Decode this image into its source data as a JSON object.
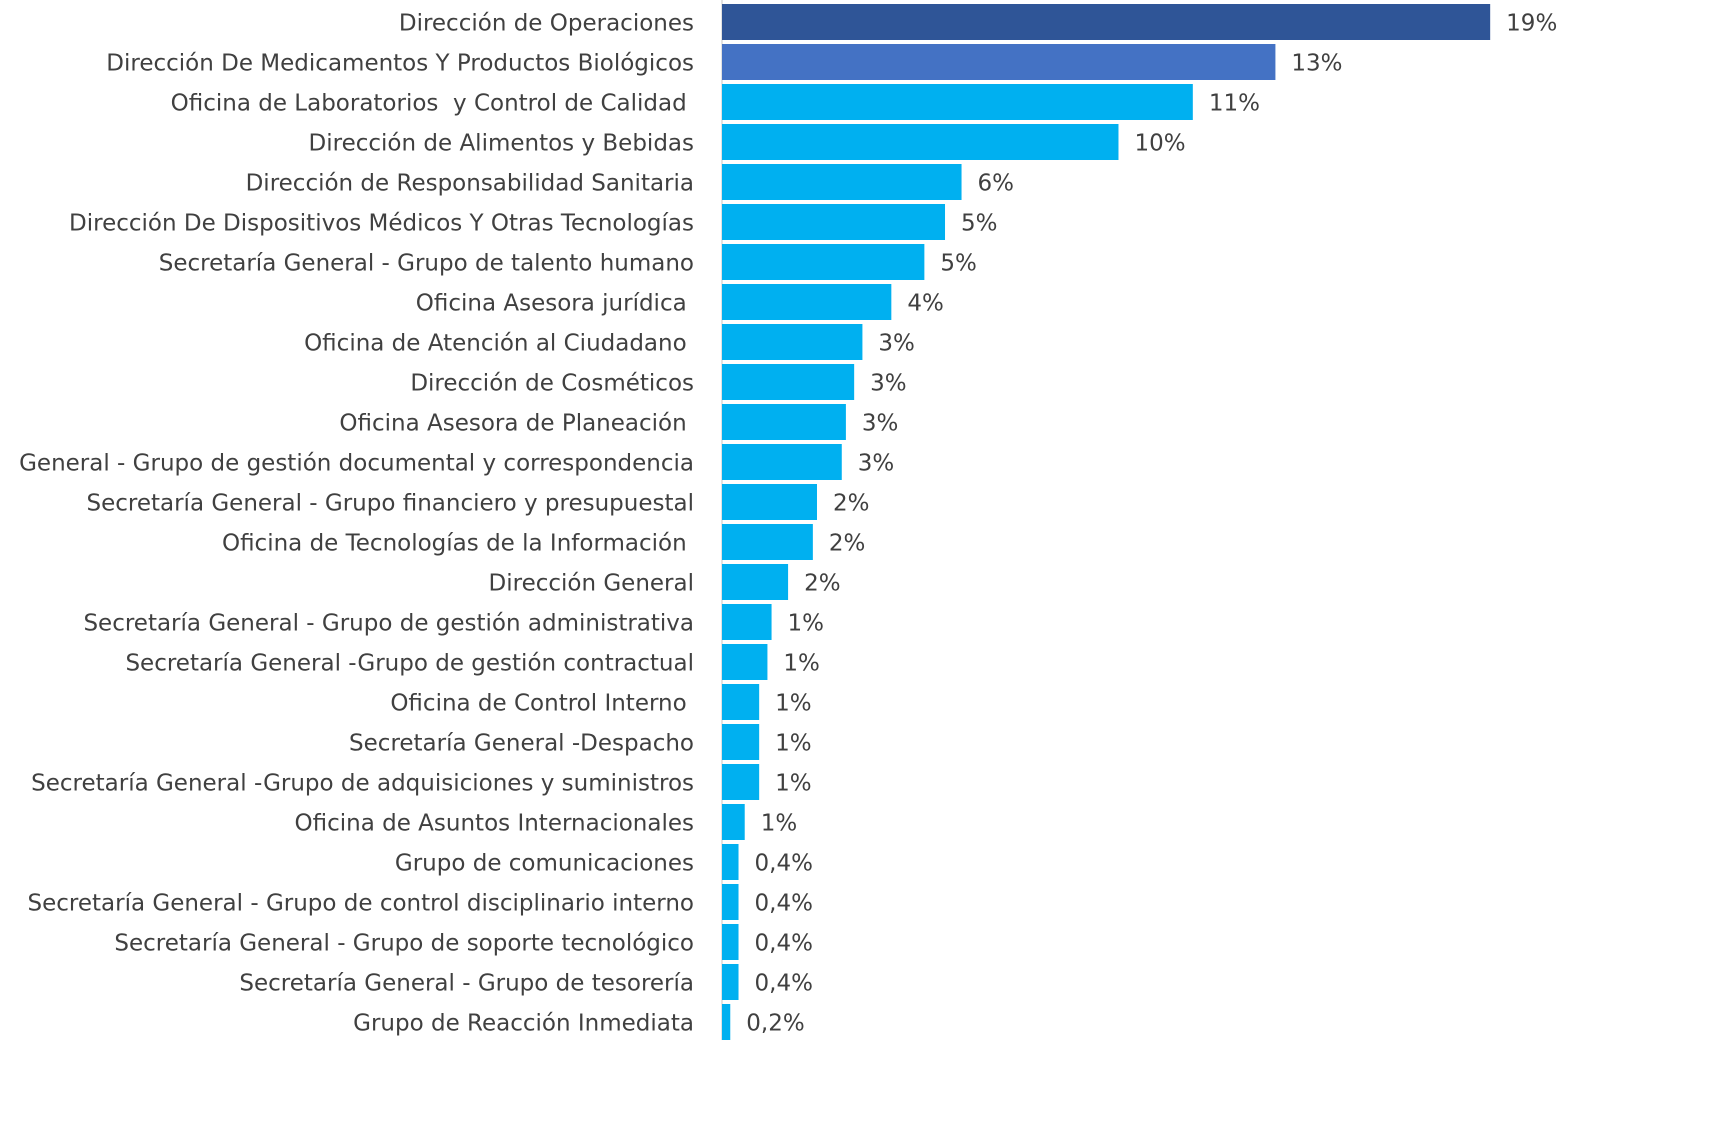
{
  "chart_data": {
    "type": "barh",
    "categories": [
      "Dirección de Operaciones",
      "Dirección De Medicamentos Y Productos Biológicos",
      "Oficina de Laboratorios  y Control de Calidad ",
      "Dirección de Alimentos y Bebidas",
      "Dirección de Responsabilidad Sanitaria",
      "Dirección De Dispositivos Médicos Y Otras Tecnologías",
      "Secretaría General - Grupo de talento humano",
      "Oficina Asesora jurídica ",
      "Oficina de Atención al Ciudadano ",
      "Dirección de Cosméticos",
      "Oficina Asesora de Planeación ",
      "General - Grupo de gestión documental y correspondencia",
      "Secretaría General - Grupo financiero y presupuestal",
      "Oficina de Tecnologías de la Información ",
      "Dirección General",
      "Secretaría General - Grupo de gestión administrativa",
      "Secretaría General -Grupo de gestión contractual",
      "Oficina de Control Interno ",
      "Secretaría General -Despacho",
      "Secretaría General -Grupo de adquisiciones y suministros",
      "Oficina de Asuntos Internacionales",
      "Grupo de comunicaciones",
      "Secretaría General - Grupo de control disciplinario interno",
      "Secretaría General - Grupo de soporte tecnológico",
      "Secretaría General - Grupo de tesorería",
      "Grupo de Reacción Inmediata"
    ],
    "values": [
      18.6,
      13.4,
      11.4,
      9.6,
      5.8,
      5.4,
      4.9,
      4.1,
      3.4,
      3.2,
      3.0,
      2.9,
      2.3,
      2.2,
      1.6,
      1.2,
      1.1,
      0.9,
      0.9,
      0.9,
      0.55,
      0.4,
      0.4,
      0.4,
      0.4,
      0.2
    ],
    "value_labels": [
      "19%",
      "13%",
      "11%",
      "10%",
      "6%",
      "5%",
      "5%",
      "4%",
      "3%",
      "3%",
      "3%",
      "3%",
      "2%",
      "2%",
      "2%",
      "1%",
      "1%",
      "1%",
      "1%",
      "1%",
      "1%",
      "0,4%",
      "0,4%",
      "0,4%",
      "0,4%",
      "0,2%"
    ],
    "colors": [
      "#2f5597",
      "#4472c4",
      "#00b0f0",
      "#00b0f0",
      "#00b0f0",
      "#00b0f0",
      "#00b0f0",
      "#00b0f0",
      "#00b0f0",
      "#00b0f0",
      "#00b0f0",
      "#00b0f0",
      "#00b0f0",
      "#00b0f0",
      "#00b0f0",
      "#00b0f0",
      "#00b0f0",
      "#00b0f0",
      "#00b0f0",
      "#00b0f0",
      "#00b0f0",
      "#00b0f0",
      "#00b0f0",
      "#00b0f0",
      "#00b0f0",
      "#00b0f0"
    ],
    "xlim": [
      0,
      20
    ]
  }
}
